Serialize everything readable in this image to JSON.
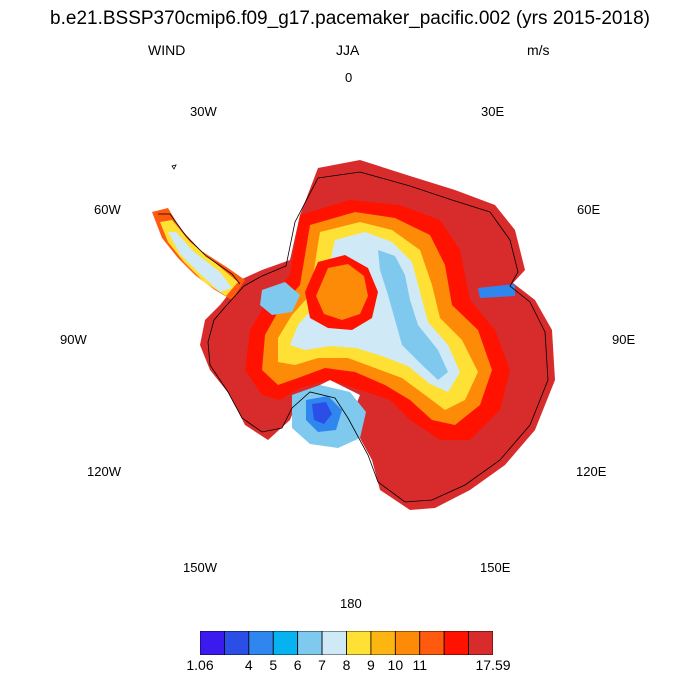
{
  "title": "b.e21.BSSP370cmip6.f09_g17.pacemaker_pacific.002 (yrs 2015-2018)",
  "variable": "WIND",
  "season": "JJA",
  "units": "m/s",
  "longitude_labels": {
    "lon_0": "0",
    "lon_30e": "30E",
    "lon_60e": "60E",
    "lon_90e": "90E",
    "lon_120e": "120E",
    "lon_150e": "150E",
    "lon_180": "180",
    "lon_150w": "150W",
    "lon_120w": "120W",
    "lon_90w": "90W",
    "lon_60w": "60W",
    "lon_30w": "30W"
  },
  "colorbar": {
    "colors": [
      "#3b1aef",
      "#2b4ee6",
      "#2f86ef",
      "#06b3f0",
      "#7fc9ef",
      "#cfe9f7",
      "#ffe135",
      "#fdb511",
      "#fd8b08",
      "#ff5a0d",
      "#ff1200",
      "#d82c2c"
    ],
    "labels": [
      "1.06",
      "4",
      "5",
      "6",
      "7",
      "8",
      "9",
      "10",
      "11",
      "17.59"
    ]
  }
}
